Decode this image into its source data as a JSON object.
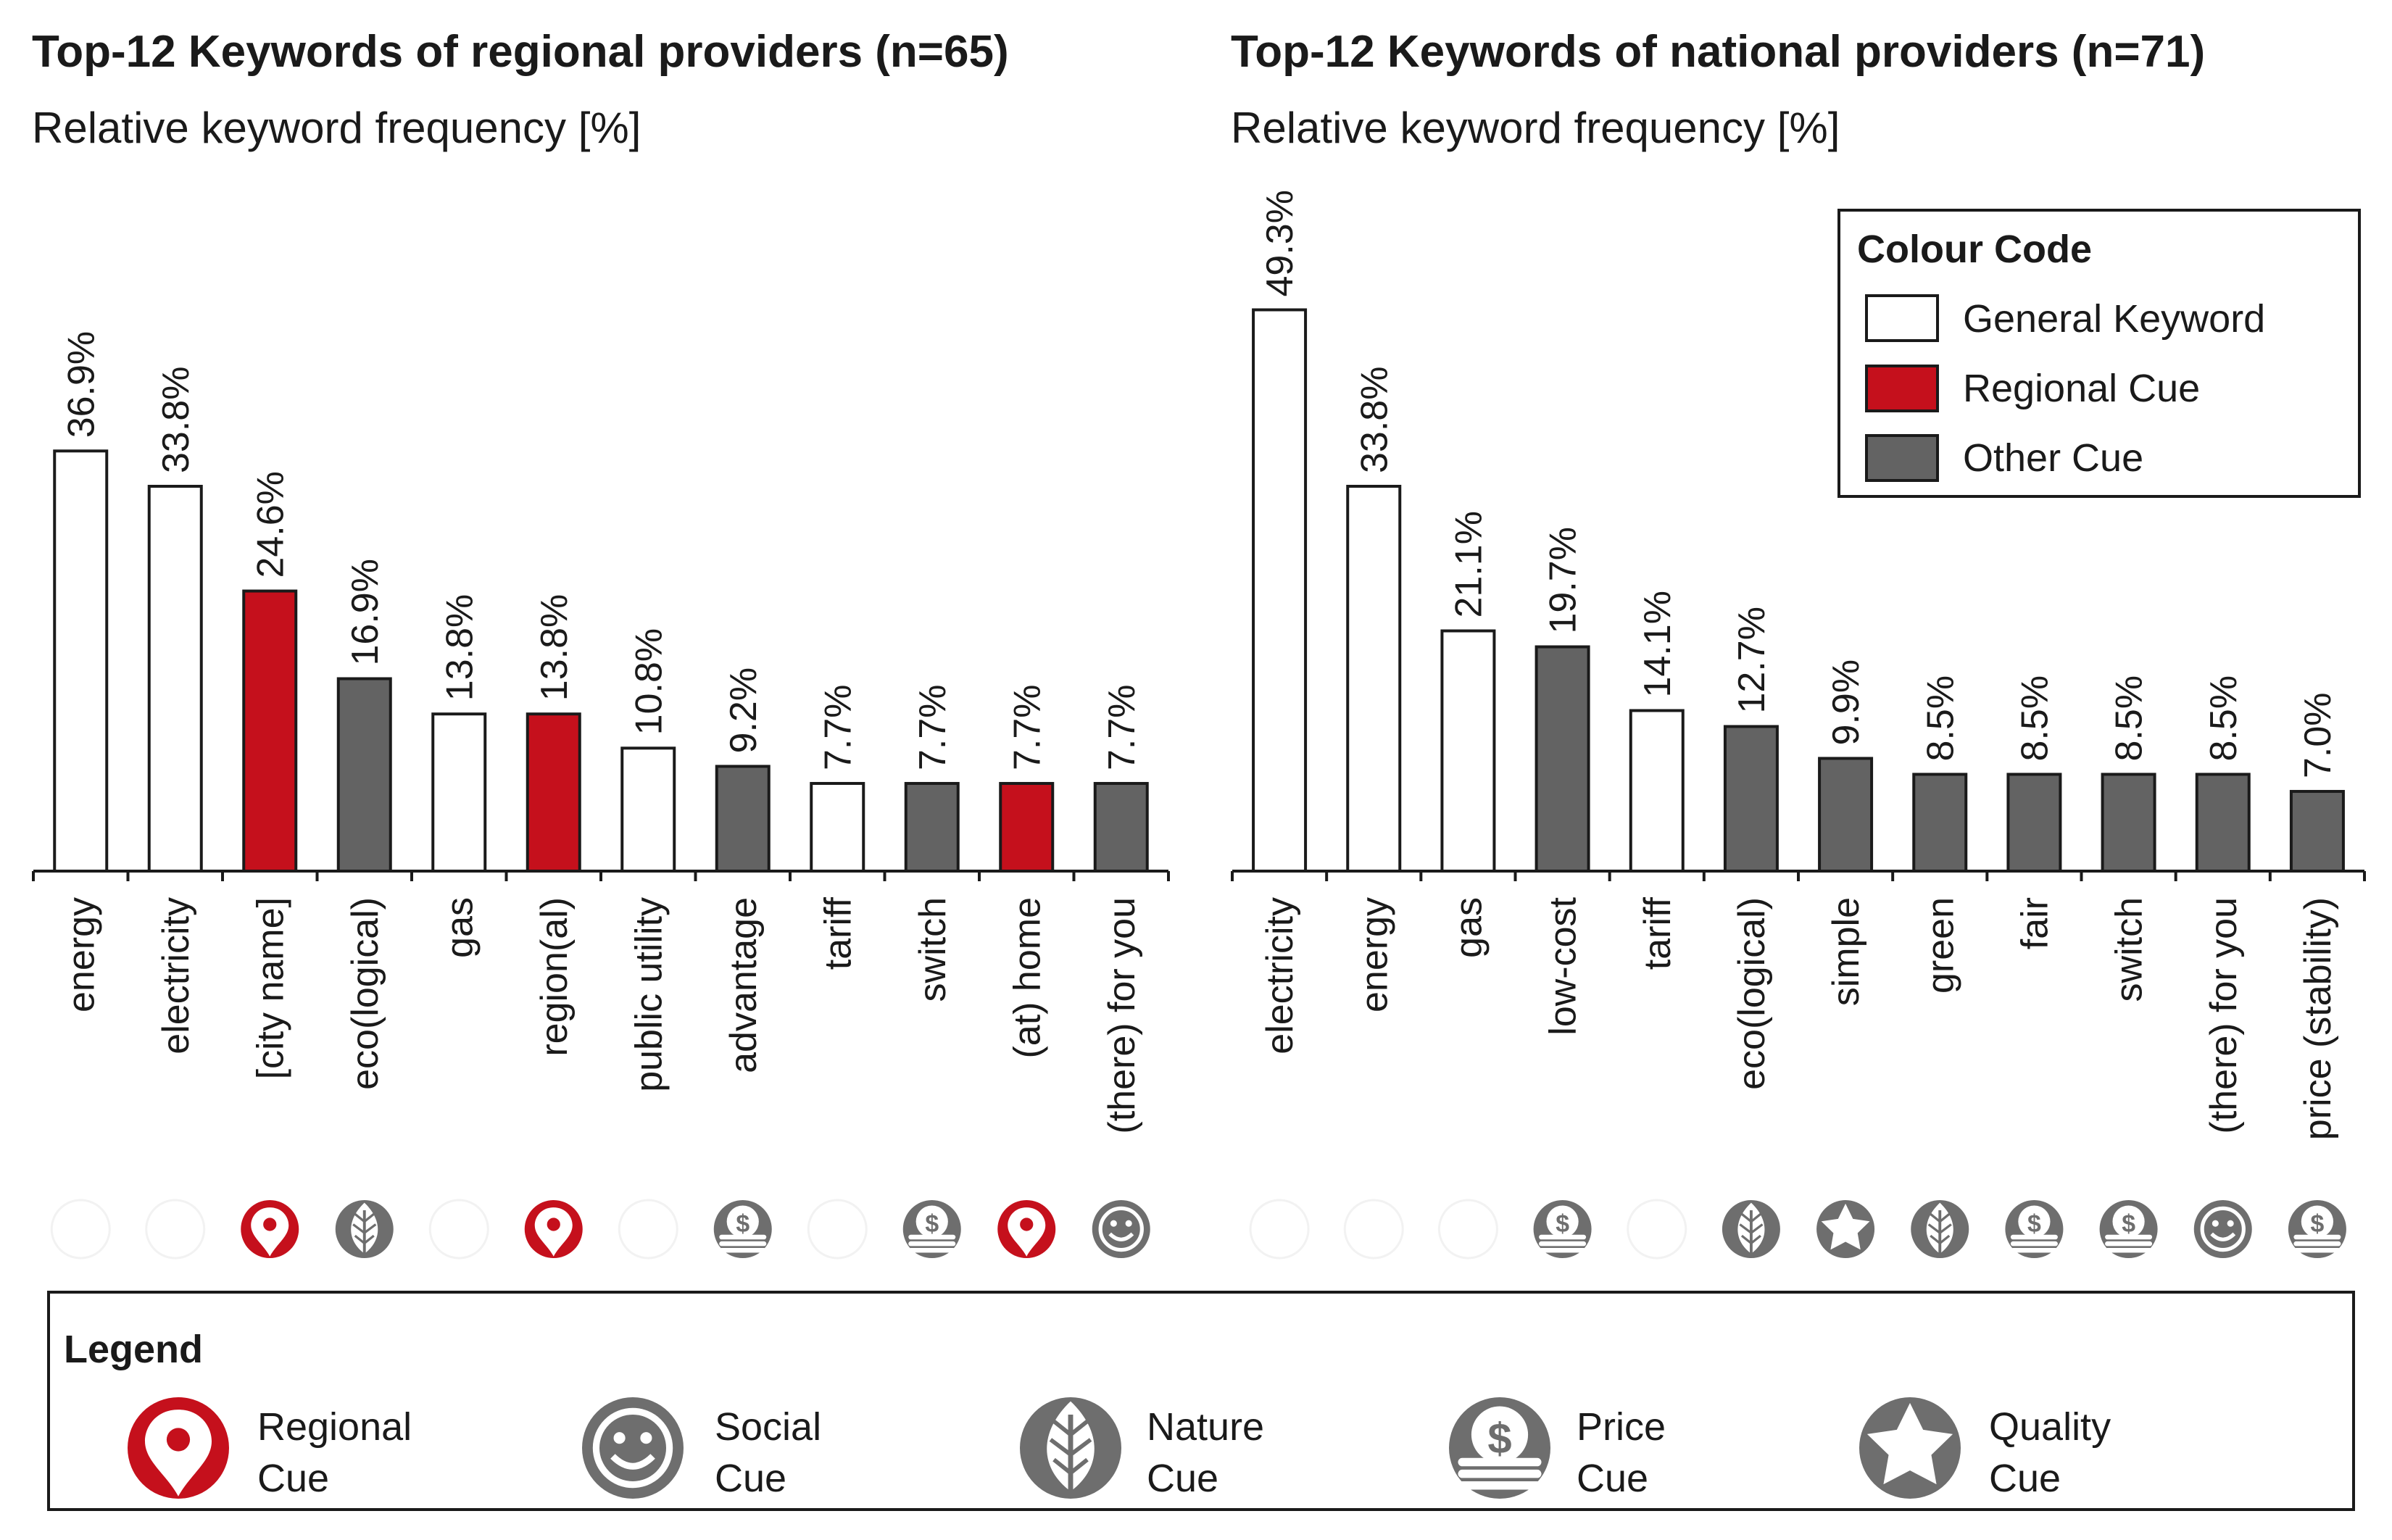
{
  "colors": {
    "general": "#ffffff",
    "regional": "#c5101c",
    "other": "#636363",
    "outline": "#1a1a1a",
    "icon_grey": "#6e6e6e",
    "icon_empty": "#f2f2f2"
  },
  "color_code": {
    "title": "Colour Code",
    "items": [
      {
        "key": "general",
        "label": "General Keyword"
      },
      {
        "key": "regional",
        "label": "Regional Cue"
      },
      {
        "key": "other",
        "label": "Other Cue"
      }
    ]
  },
  "legend": {
    "title": "Legend",
    "items": [
      {
        "icon": "regional-pin-icon",
        "line1": "Regional",
        "line2": "Cue"
      },
      {
        "icon": "social-smiley-icon",
        "line1": "Social",
        "line2": "Cue"
      },
      {
        "icon": "nature-leaf-icon",
        "line1": "Nature",
        "line2": "Cue"
      },
      {
        "icon": "price-coins-icon",
        "line1": "Price",
        "line2": "Cue"
      },
      {
        "icon": "quality-star-icon",
        "line1": "Quality",
        "line2": "Cue"
      }
    ]
  },
  "chart_data": [
    {
      "type": "bar",
      "title": "Top-12 Keywords of regional providers (n=65)",
      "ylabel": "Relative keyword frequency [%]",
      "xlabel": "",
      "ylim": [
        0,
        55
      ],
      "categories": [
        "energy",
        "electricity",
        "[city name]",
        "eco(logical)",
        "gas",
        "region(al)",
        "public utility",
        "advantage",
        "tariff",
        "switch",
        "(at) home",
        "(there) for you"
      ],
      "values": [
        36.9,
        33.8,
        24.6,
        16.9,
        13.8,
        13.8,
        10.8,
        9.2,
        7.7,
        7.7,
        7.7,
        7.7
      ],
      "labels": [
        "36.9%",
        "33.8%",
        "24.6%",
        "16.9%",
        "13.8%",
        "13.8%",
        "10.8%",
        "9.2%",
        "7.7%",
        "7.7%",
        "7.7%",
        "7.7%"
      ],
      "bar_colors": [
        "general",
        "general",
        "regional",
        "other",
        "general",
        "regional",
        "general",
        "other",
        "general",
        "other",
        "regional",
        "other"
      ],
      "cue_icons": [
        "none",
        "none",
        "regional",
        "nature",
        "none",
        "regional",
        "none",
        "price",
        "none",
        "price",
        "regional",
        "social"
      ]
    },
    {
      "type": "bar",
      "title": "Top-12 Keywords of national providers (n=71)",
      "ylabel": "Relative keyword frequency [%]",
      "xlabel": "",
      "ylim": [
        0,
        55
      ],
      "categories": [
        "electricity",
        "energy",
        "gas",
        "low-cost",
        "tariff",
        "eco(logical)",
        "simple",
        "green",
        "fair",
        "switch",
        "(there) for you",
        "price (stability)"
      ],
      "values": [
        49.3,
        33.8,
        21.1,
        19.7,
        14.1,
        12.7,
        9.9,
        8.5,
        8.5,
        8.5,
        8.5,
        7.0
      ],
      "labels": [
        "49.3%",
        "33.8%",
        "21.1%",
        "19.7%",
        "14.1%",
        "12.7%",
        "9.9%",
        "8.5%",
        "8.5%",
        "8.5%",
        "8.5%",
        "7.0%"
      ],
      "bar_colors": [
        "general",
        "general",
        "general",
        "other",
        "general",
        "other",
        "other",
        "other",
        "other",
        "other",
        "other",
        "other"
      ],
      "cue_icons": [
        "none",
        "none",
        "none",
        "price",
        "none",
        "nature",
        "quality",
        "nature",
        "price",
        "price",
        "social",
        "price"
      ]
    }
  ]
}
